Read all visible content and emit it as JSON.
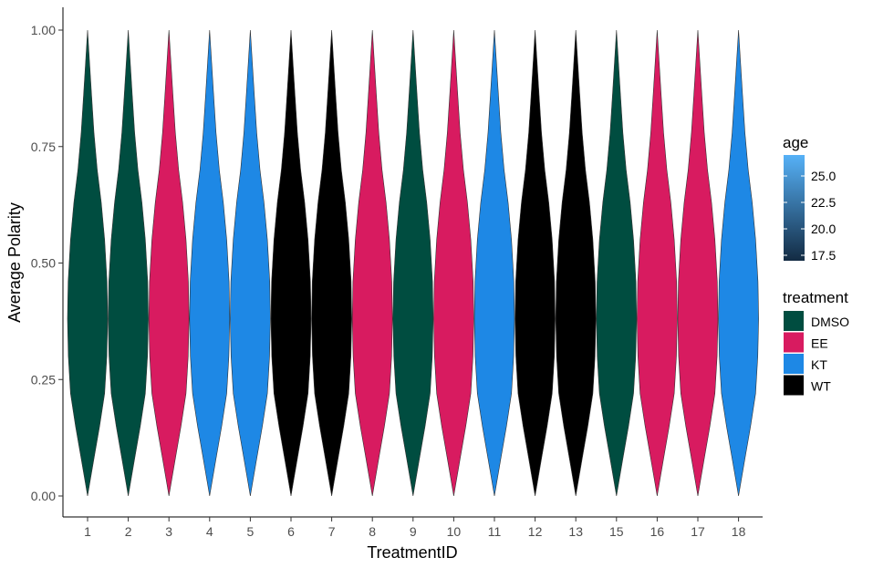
{
  "chart_data": {
    "type": "violin",
    "xlabel": "TreatmentID",
    "ylabel": "Average Polarity",
    "ylim": [
      0,
      1
    ],
    "yticks": [
      "0.00",
      "0.25",
      "0.50",
      "0.75",
      "1.00"
    ],
    "categories": [
      "1",
      "2",
      "3",
      "4",
      "5",
      "6",
      "7",
      "8",
      "9",
      "10",
      "11",
      "12",
      "13",
      "15",
      "16",
      "17",
      "18"
    ],
    "treatment_by_category": [
      "DMSO",
      "DMSO",
      "EE",
      "KT",
      "KT",
      "WT",
      "WT",
      "EE",
      "DMSO",
      "EE",
      "KT",
      "WT",
      "WT",
      "DMSO",
      "EE",
      "EE",
      "KT"
    ],
    "violin_range": [
      0,
      1
    ],
    "grid": false,
    "legend": {
      "placement": "right",
      "age": {
        "title": "age",
        "ticks": [
          "25.0",
          "22.5",
          "20.0",
          "17.5"
        ],
        "colors": {
          "low": "#132b43",
          "high": "#56b1f7"
        }
      },
      "treatment": {
        "title": "treatment",
        "entries": [
          {
            "label": "DMSO",
            "color": "#004d40"
          },
          {
            "label": "EE",
            "color": "#d81b60"
          },
          {
            "label": "KT",
            "color": "#1e88e5"
          },
          {
            "label": "WT",
            "color": "#000000"
          }
        ]
      }
    }
  }
}
